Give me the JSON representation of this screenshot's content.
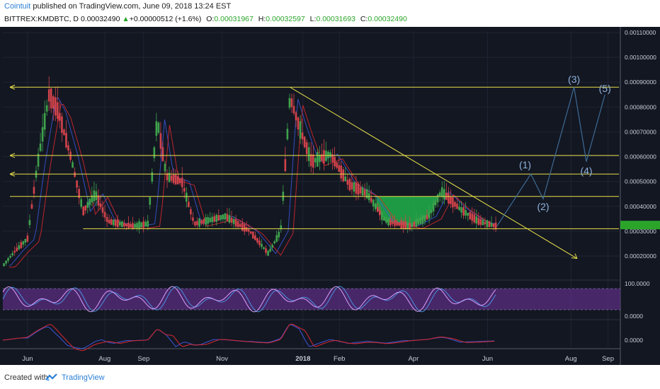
{
  "header": {
    "author": "Cointuit",
    "published_text": "published on TradingView.com, June 09, 2018 13:24 EST",
    "symbol": "BITTREX:KMDBTC, D",
    "last": "0.00032490",
    "change_arrow": "▲",
    "change": "+0.00000512 (+1.6%)",
    "o_label": "O:",
    "o_val": "0.00031967",
    "h_label": "H:",
    "h_val": "0.00032597",
    "l_label": "L:",
    "l_val": "0.00031693",
    "c_label": "C:",
    "c_val": "0.00032490"
  },
  "footer": {
    "created_with": "Created with",
    "brand": "TradingView",
    "logo_icon": "tradingview-logo-icon"
  },
  "colors": {
    "background": "#131722",
    "grid": "#1f2433",
    "candle_up": "#3fa34d",
    "candle_down": "#d2434b",
    "support_line": "#e8e04a",
    "wave_path": "#3d6a94",
    "wave_label": "#8fb3dc",
    "cup_fill": "#21b24b",
    "stoch_band": "#5b2e82",
    "stoch_k": "#4a90e2",
    "stoch_d": "#d9a0ff",
    "macd_line": "#3b57d9",
    "macd_signal": "#d9282f"
  },
  "chart_data": {
    "type": "candlestick",
    "symbol": "BITTREX:KMDBTC",
    "interval": "D",
    "x_tick_labels": [
      "Jun",
      "Aug",
      "Sep",
      "Nov",
      "2018",
      "Feb",
      "Apr",
      "Jun",
      "Aug",
      "Sep"
    ],
    "y_tick_labels": [
      "0.00110000",
      "0.00100000",
      "0.00090000",
      "0.00080000",
      "0.00070000",
      "0.00060000",
      "0.00050000",
      "0.00040000",
      "0.00030000",
      "0.00020000"
    ],
    "ylim": [
      0.00015,
      0.00112
    ],
    "price_path": [
      {
        "t": 0,
        "p": 0.00016
      },
      {
        "t": 0.02,
        "p": 0.00022
      },
      {
        "t": 0.04,
        "p": 0.00027
      },
      {
        "t": 0.055,
        "p": 0.00055
      },
      {
        "t": 0.075,
        "p": 0.00085
      },
      {
        "t": 0.09,
        "p": 0.00078
      },
      {
        "t": 0.11,
        "p": 0.0006
      },
      {
        "t": 0.13,
        "p": 0.00038
      },
      {
        "t": 0.15,
        "p": 0.00045
      },
      {
        "t": 0.17,
        "p": 0.00034
      },
      {
        "t": 0.21,
        "p": 0.00032
      },
      {
        "t": 0.235,
        "p": 0.00033
      },
      {
        "t": 0.25,
        "p": 0.00075
      },
      {
        "t": 0.265,
        "p": 0.00052
      },
      {
        "t": 0.29,
        "p": 0.0005
      },
      {
        "t": 0.31,
        "p": 0.00033
      },
      {
        "t": 0.36,
        "p": 0.00036
      },
      {
        "t": 0.4,
        "p": 0.0003
      },
      {
        "t": 0.43,
        "p": 0.00021
      },
      {
        "t": 0.45,
        "p": 0.0003
      },
      {
        "t": 0.465,
        "p": 0.00084
      },
      {
        "t": 0.48,
        "p": 0.00072
      },
      {
        "t": 0.5,
        "p": 0.00058
      },
      {
        "t": 0.53,
        "p": 0.00061
      },
      {
        "t": 0.56,
        "p": 0.00049
      },
      {
        "t": 0.59,
        "p": 0.00045
      },
      {
        "t": 0.62,
        "p": 0.00034
      },
      {
        "t": 0.66,
        "p": 0.00032
      },
      {
        "t": 0.69,
        "p": 0.00036
      },
      {
        "t": 0.71,
        "p": 0.00046
      },
      {
        "t": 0.74,
        "p": 0.00039
      },
      {
        "t": 0.77,
        "p": 0.00034
      },
      {
        "t": 0.8,
        "p": 0.00032
      }
    ],
    "horizontal_lines": [
      0.00088,
      0.000605,
      0.00053,
      0.00044,
      0.00031
    ],
    "trendline": {
      "from": {
        "t": 0.465,
        "p": 0.00088
      },
      "to": {
        "t": 0.93,
        "p": 0.00019
      }
    },
    "elliott_waves": [
      {
        "label": "(1)",
        "p": 0.00053
      },
      {
        "label": "(2)",
        "p": 0.00043
      },
      {
        "label": "(3)",
        "p": 0.00088
      },
      {
        "label": "(4)",
        "p": 0.00058
      },
      {
        "label": "(5)",
        "p": 0.00085
      }
    ],
    "stoch_axis_labels": [
      "100.0000",
      "0.0000"
    ],
    "macd_axis_labels": [
      "0.0000"
    ]
  }
}
